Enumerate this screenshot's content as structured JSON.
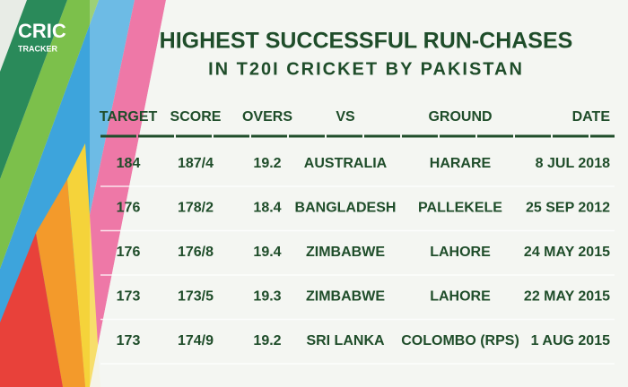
{
  "logo": {
    "top": "CRIC",
    "bottom": "TRACKER"
  },
  "header": {
    "title": "HIGHEST SUCCESSFUL RUN-CHASES",
    "subtitle": "IN T20I CRICKET BY PAKISTAN"
  },
  "table": {
    "columns": [
      "TARGET",
      "SCORE",
      "OVERS",
      "VS",
      "GROUND",
      "DATE"
    ],
    "rows": [
      [
        "184",
        "187/4",
        "19.2",
        "AUSTRALIA",
        "HARARE",
        "8 JUL 2018"
      ],
      [
        "176",
        "178/2",
        "18.4",
        "BANGLADESH",
        "PALLEKELE",
        "25 SEP 2012"
      ],
      [
        "176",
        "176/8",
        "19.4",
        "ZIMBABWE",
        "LAHORE",
        "24 MAY 2015"
      ],
      [
        "173",
        "173/5",
        "19.3",
        "ZIMBABWE",
        "LAHORE",
        "22 MAY 2015"
      ],
      [
        "173",
        "174/9",
        "19.2",
        "SRI LANKA",
        "COLOMBO (RPS)",
        "1 AUG 2015"
      ]
    ]
  }
}
